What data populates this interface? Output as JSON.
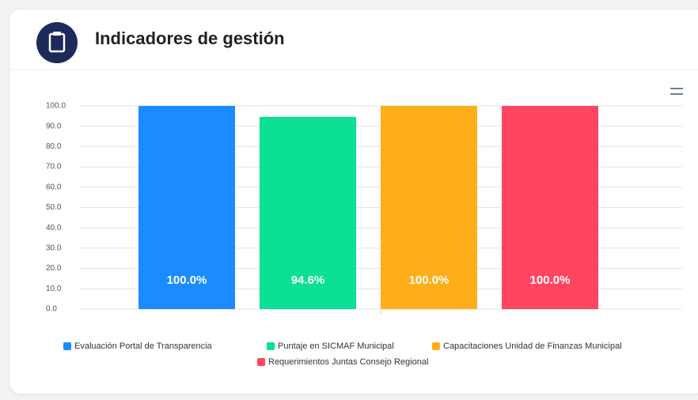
{
  "chart_data": {
    "type": "bar",
    "title": "Indicadores de gestión",
    "categories": [
      "Evaluación Portal de Transparencia",
      "Puntaje en SICMAF Municipal",
      "Capacitaciones Unidad de Finanzas Municipal",
      "Requerimientos Juntas Consejo Regional"
    ],
    "values": [
      100,
      94.6,
      100,
      100
    ],
    "value_labels": [
      "100.0%",
      "94.6%",
      "100.0%",
      "100.0%"
    ],
    "colors": [
      "#1a8cff",
      "#0be094",
      "#ffae1a",
      "#ff4560"
    ],
    "ylim": [
      0,
      100
    ],
    "yticks": [
      {
        "value": 0,
        "label": "0.0"
      },
      {
        "value": 10,
        "label": "10.0"
      },
      {
        "value": 20,
        "label": "20.0"
      },
      {
        "value": 30,
        "label": "30.0"
      },
      {
        "value": 40,
        "label": "40.0"
      },
      {
        "value": 50,
        "label": "50.0"
      },
      {
        "value": 60,
        "label": "60.0"
      },
      {
        "value": 70,
        "label": "70.0"
      },
      {
        "value": 80,
        "label": "80.0"
      },
      {
        "value": 90,
        "label": "90.0"
      },
      {
        "value": 100,
        "label": "100.0"
      }
    ],
    "grid": true
  }
}
